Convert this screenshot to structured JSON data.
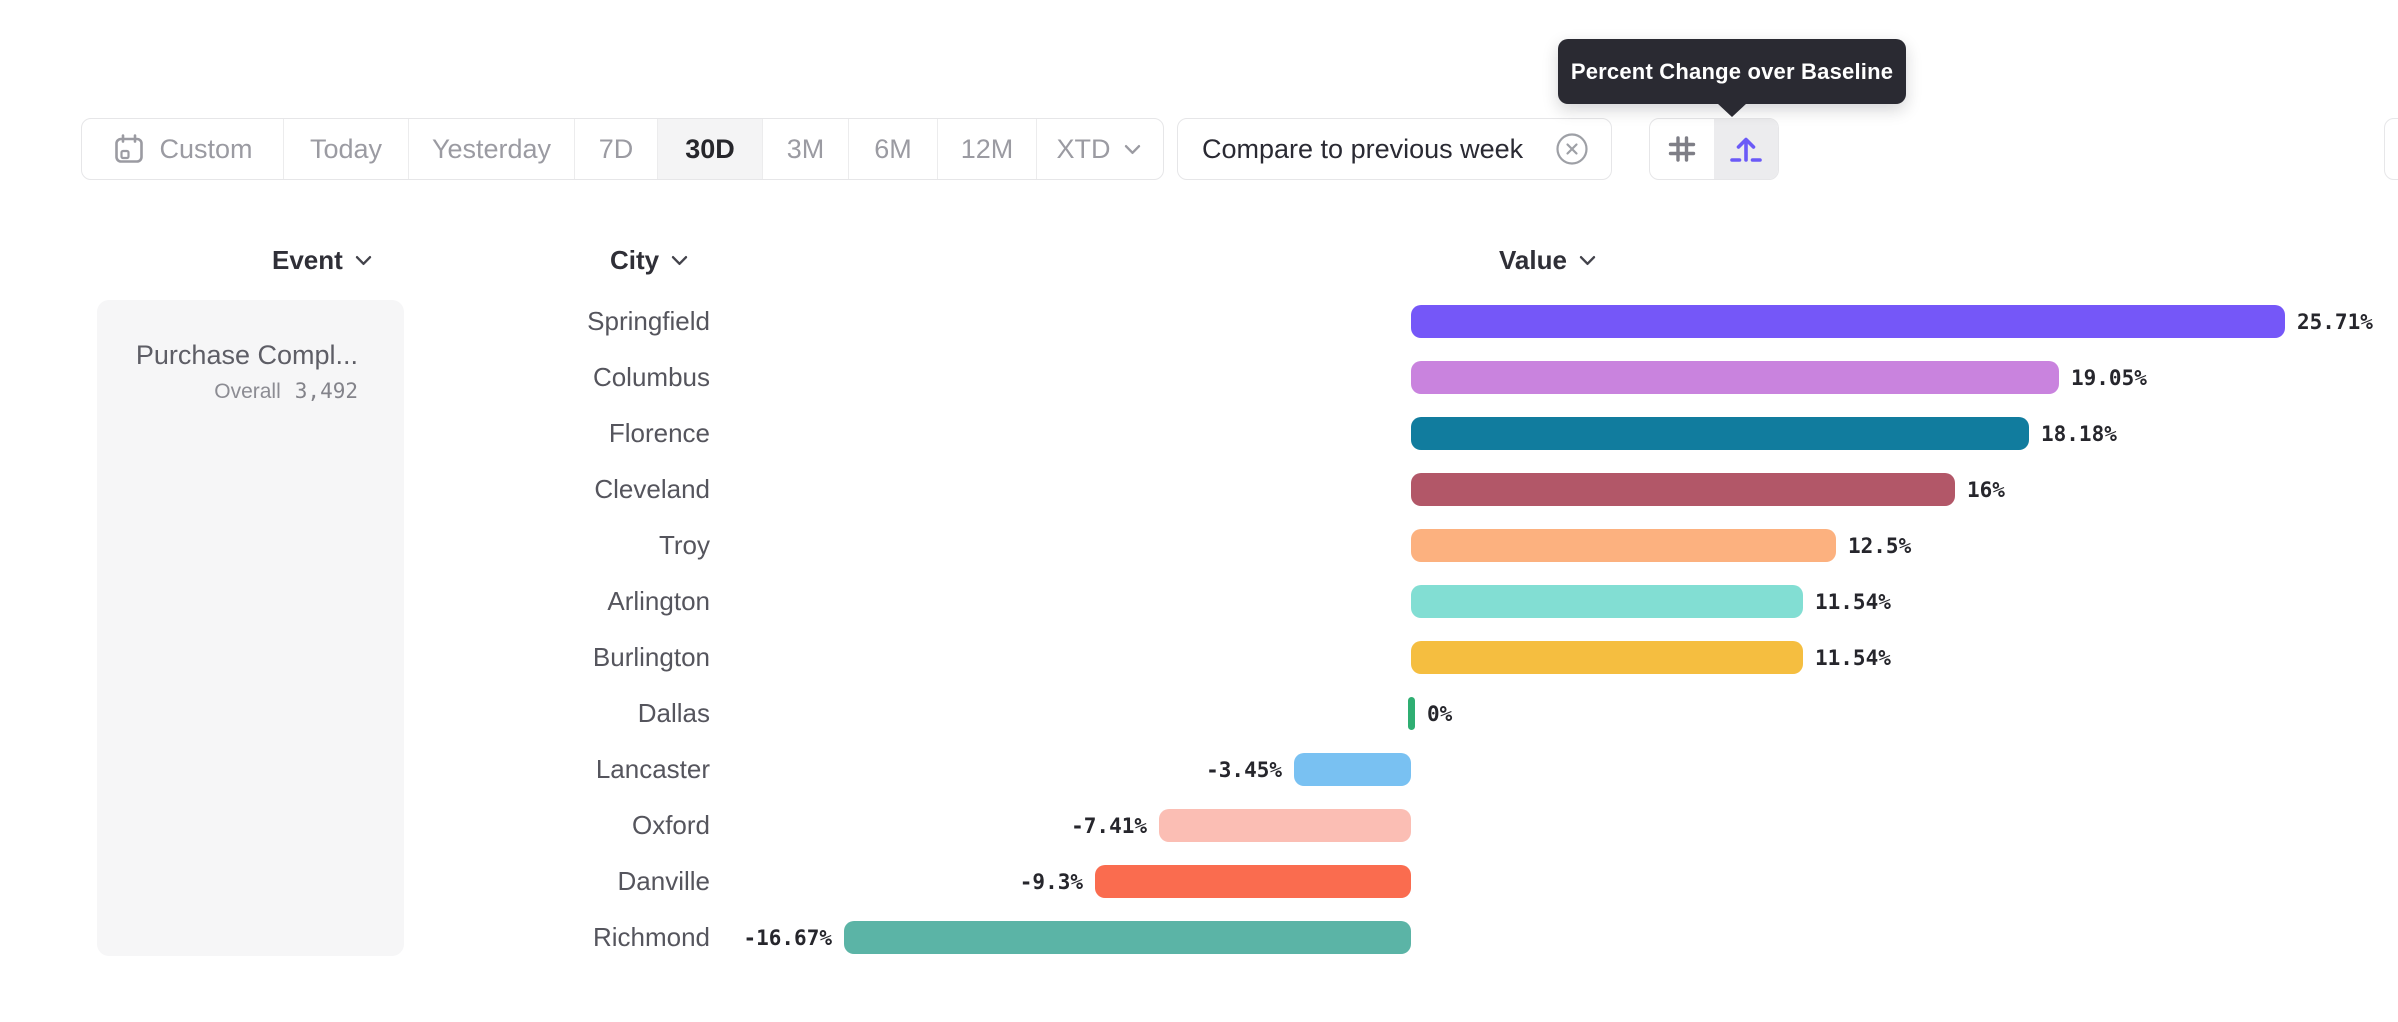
{
  "tooltip": {
    "text": "Percent Change over Baseline"
  },
  "toolbar": {
    "items": [
      {
        "label": "Custom"
      },
      {
        "label": "Today"
      },
      {
        "label": "Yesterday"
      },
      {
        "label": "7D"
      },
      {
        "label": "30D",
        "selected": true
      },
      {
        "label": "3M"
      },
      {
        "label": "6M"
      },
      {
        "label": "12M"
      },
      {
        "label": "XTD"
      }
    ]
  },
  "compare_pill": {
    "label": "Compare to previous week"
  },
  "columns": {
    "event": "Event",
    "city": "City",
    "value": "Value"
  },
  "event_cell": {
    "title": "Purchase Compl...",
    "overall_label": "Overall",
    "overall_value": "3,492"
  },
  "chart_data": {
    "type": "bar",
    "orientation": "horizontal",
    "unit": "%",
    "category_axis_label": "City",
    "value_axis_label": "Value",
    "baseline": 0,
    "categories": [
      "Springfield",
      "Columbus",
      "Florence",
      "Cleveland",
      "Troy",
      "Arlington",
      "Burlington",
      "Dallas",
      "Lancaster",
      "Oxford",
      "Danville",
      "Richmond"
    ],
    "values": [
      25.71,
      19.05,
      18.18,
      16,
      12.5,
      11.54,
      11.54,
      0,
      -3.45,
      -7.41,
      -9.3,
      -16.67
    ],
    "labels": [
      "25.71%",
      "19.05%",
      "18.18%",
      "16%",
      "12.5%",
      "11.54%",
      "11.54%",
      "0%",
      "-3.45%",
      "-7.41%",
      "-9.3%",
      "-16.67%"
    ],
    "colors": [
      "#7557F8",
      "#C983DE",
      "#117C9E",
      "#B25768",
      "#FCB17F",
      "#82DED3",
      "#F5BE40",
      "#2FAE72",
      "#79C1F2",
      "#FBBEB4",
      "#FA6C4F",
      "#5BB4A6"
    ]
  }
}
